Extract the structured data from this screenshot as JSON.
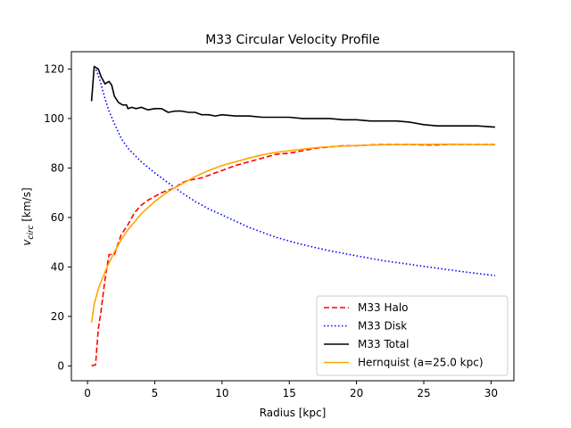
{
  "chart_data": {
    "type": "line",
    "title": "M33 Circular Velocity Profile",
    "xlabel": "Radius [kpc]",
    "ylabel_main": "v",
    "ylabel_sub": "circ",
    "ylabel_unit": " [km/s]",
    "xlim": [
      -1.2,
      31.7
    ],
    "ylim": [
      -6,
      127
    ],
    "xticks": [
      0,
      5,
      10,
      15,
      20,
      25,
      30
    ],
    "yticks": [
      0,
      20,
      40,
      60,
      80,
      100,
      120
    ],
    "legend_position": "lower-right",
    "series": [
      {
        "name": "M33 Halo",
        "color": "#ff0000",
        "style": "dashed",
        "x": [
          0.3,
          0.6,
          0.8,
          1.0,
          1.3,
          1.6,
          2.0,
          2.5,
          3.0,
          3.5,
          4.0,
          4.5,
          5.0,
          5.5,
          6.0,
          6.5,
          7.0,
          7.5,
          8.0,
          8.5,
          9.0,
          9.5,
          10.0,
          11.0,
          12.0,
          13.0,
          14.0,
          15.0,
          16.0,
          17.0,
          18.0,
          19.0,
          20.0,
          21.0,
          22.0,
          23.0,
          24.0,
          25.0,
          26.0,
          27.0,
          28.0,
          29.0,
          30.3
        ],
        "y": [
          0,
          0.5,
          15,
          22,
          35,
          45,
          45,
          53,
          57,
          62,
          65,
          67,
          68.5,
          70,
          71,
          72,
          74,
          75,
          75.5,
          76,
          77,
          78,
          79,
          81,
          82.5,
          84,
          85.5,
          86,
          87,
          88,
          88.5,
          89,
          89,
          89.3,
          89.5,
          89.5,
          89.5,
          89.3,
          89.3,
          89.6,
          89.5,
          89.5,
          89.5
        ]
      },
      {
        "name": "M33 Disk",
        "color": "#0000ff",
        "style": "dotted",
        "x": [
          0.5,
          0.7,
          1.0,
          1.3,
          1.6,
          2.0,
          2.5,
          3.0,
          4.0,
          5.0,
          6.0,
          7.0,
          8.0,
          9.0,
          10.0,
          12.0,
          14.0,
          16.0,
          18.0,
          20.0,
          22.0,
          24.0,
          26.0,
          28.0,
          30.3
        ],
        "y": [
          121,
          119,
          114,
          108,
          103,
          98,
          92,
          88,
          82.5,
          78,
          74,
          70,
          66.5,
          63.5,
          61,
          56,
          52,
          49,
          46.5,
          44.5,
          42.5,
          41,
          39.5,
          38,
          36.5
        ]
      },
      {
        "name": "M33 Total",
        "color": "#000000",
        "style": "solid",
        "x": [
          0.3,
          0.5,
          0.8,
          1.0,
          1.3,
          1.6,
          1.8,
          2.0,
          2.3,
          2.6,
          2.9,
          3.0,
          3.3,
          3.6,
          4.0,
          4.5,
          5.0,
          5.5,
          6.0,
          6.5,
          7.0,
          7.5,
          8.0,
          8.5,
          9.0,
          9.5,
          10.0,
          11.0,
          12.0,
          13.0,
          14.0,
          15.0,
          16.0,
          17.0,
          18.0,
          19.0,
          20.0,
          21.0,
          22.0,
          23.0,
          24.0,
          25.0,
          26.0,
          27.0,
          28.0,
          29.0,
          30.3
        ],
        "y": [
          107,
          121,
          120,
          117,
          114,
          115,
          113.5,
          109,
          106.5,
          105.5,
          105.5,
          104,
          104.5,
          104,
          104.5,
          103.5,
          104,
          104,
          102.5,
          103,
          103,
          102.5,
          102.5,
          101.5,
          101.5,
          101,
          101.5,
          101,
          101,
          100.5,
          100.5,
          100.5,
          100,
          100,
          100,
          99.5,
          99.5,
          99,
          99,
          99,
          98.5,
          97.5,
          97,
          97,
          97,
          97,
          96.5
        ]
      },
      {
        "name": "Hernquist (a=25.0 kpc)",
        "color": "#ffa500",
        "style": "solid",
        "x": [
          0.3,
          0.5,
          0.8,
          1.0,
          1.5,
          2.0,
          2.5,
          3.0,
          4.0,
          5.0,
          6.0,
          7.0,
          8.0,
          9.0,
          10.0,
          11.0,
          12.0,
          13.0,
          14.0,
          15.0,
          16.0,
          17.0,
          18.0,
          20.0,
          22.0,
          24.0,
          26.0,
          28.0,
          30.3
        ],
        "y": [
          17.5,
          25,
          31,
          34,
          40.5,
          46,
          51,
          55,
          61.5,
          66.5,
          70.5,
          73.5,
          76.5,
          79,
          81,
          82.5,
          84,
          85.3,
          86.3,
          87,
          87.6,
          88.2,
          88.6,
          89.1,
          89.4,
          89.5,
          89.6,
          89.5,
          89.4
        ]
      }
    ]
  }
}
